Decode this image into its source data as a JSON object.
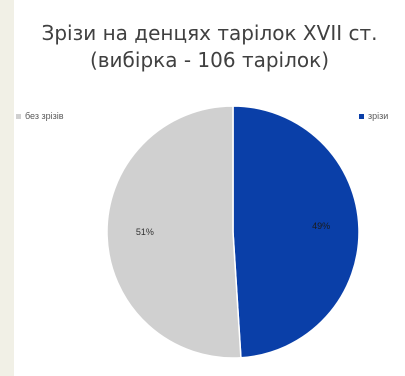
{
  "chart_data": {
    "type": "pie",
    "title_line1": "Зрізи на денцях тарілок XVII ст.",
    "title_line2": "(вибірка - 106 тарілок)",
    "slices": [
      {
        "name": "зрізи",
        "value": 49,
        "label": "49%",
        "color": "#0a3fa8"
      },
      {
        "name": "без зрізів",
        "value": 51,
        "label": "51%",
        "color": "#d0d0d0"
      }
    ],
    "legend": {
      "left": "без зрізів",
      "right": "зрізи"
    },
    "legend_placement": "top"
  }
}
